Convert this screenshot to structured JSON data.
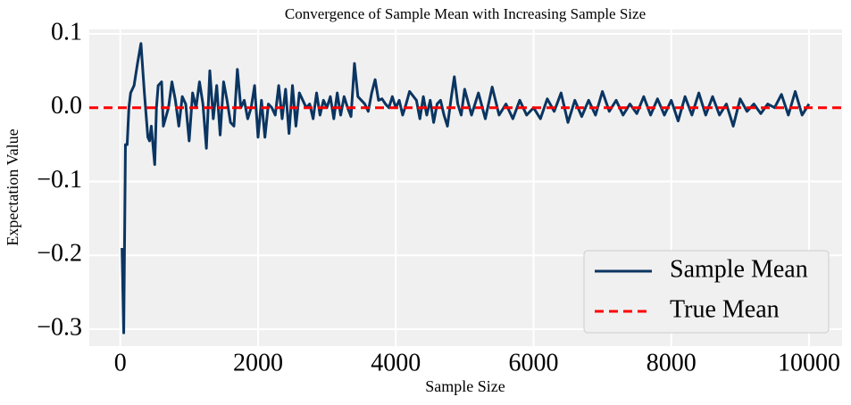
{
  "chart_data": {
    "type": "line",
    "title": "Convergence of Sample Mean with Increasing Sample Size",
    "xlabel": "Sample Size",
    "ylabel": "Expectation Value",
    "x": [
      25,
      50,
      75,
      100,
      125,
      150,
      200,
      250,
      300,
      350,
      400,
      425,
      450,
      500,
      525,
      550,
      600,
      625,
      700,
      750,
      800,
      850,
      900,
      950,
      1000,
      1050,
      1100,
      1150,
      1200,
      1250,
      1300,
      1350,
      1400,
      1450,
      1500,
      1550,
      1600,
      1650,
      1700,
      1750,
      1800,
      1850,
      1900,
      1950,
      2000,
      2050,
      2100,
      2150,
      2200,
      2250,
      2300,
      2350,
      2400,
      2450,
      2500,
      2550,
      2600,
      2650,
      2700,
      2750,
      2800,
      2850,
      2900,
      2950,
      3000,
      3050,
      3100,
      3150,
      3200,
      3250,
      3300,
      3350,
      3400,
      3450,
      3500,
      3550,
      3600,
      3650,
      3700,
      3750,
      3800,
      3850,
      3900,
      3950,
      4000,
      4050,
      4100,
      4150,
      4200,
      4300,
      4350,
      4400,
      4450,
      4500,
      4550,
      4600,
      4650,
      4700,
      4750,
      4800,
      4850,
      4900,
      4950,
      5000,
      5100,
      5200,
      5300,
      5400,
      5500,
      5600,
      5700,
      5800,
      5900,
      6000,
      6100,
      6200,
      6300,
      6400,
      6500,
      6600,
      6700,
      6800,
      6900,
      7000,
      7100,
      7200,
      7300,
      7400,
      7500,
      7600,
      7700,
      7800,
      7900,
      8000,
      8100,
      8200,
      8300,
      8400,
      8500,
      8600,
      8700,
      8800,
      8900,
      9000,
      9100,
      9200,
      9300,
      9400,
      9500,
      9600,
      9700,
      9800,
      9900,
      10000
    ],
    "series": [
      {
        "name": "Sample Mean",
        "color": "#0b3561",
        "values": [
          -0.19,
          -0.305,
          -0.05,
          -0.05,
          0.0,
          0.02,
          0.03,
          0.06,
          0.087,
          0.02,
          -0.04,
          -0.045,
          -0.025,
          -0.077,
          0.0,
          0.03,
          0.035,
          -0.025,
          0.0,
          0.035,
          0.01,
          -0.025,
          0.015,
          0.005,
          -0.045,
          0.02,
          0.0,
          0.035,
          0.005,
          -0.055,
          0.05,
          -0.015,
          0.03,
          -0.037,
          0.035,
          0.01,
          -0.02,
          -0.025,
          0.052,
          0.0,
          0.01,
          -0.015,
          0.0,
          0.03,
          -0.04,
          0.01,
          -0.04,
          0.005,
          0.0,
          -0.01,
          0.03,
          -0.015,
          0.025,
          -0.035,
          0.03,
          -0.025,
          0.02,
          0.01,
          0.0,
          0.005,
          -0.015,
          0.02,
          -0.01,
          0.01,
          0.0,
          0.015,
          -0.015,
          0.02,
          -0.01,
          0.015,
          0.0,
          -0.012,
          0.06,
          0.015,
          0.01,
          0.005,
          -0.005,
          0.02,
          0.038,
          0.01,
          0.012,
          0.005,
          0.0,
          0.015,
          0.0,
          0.01,
          -0.01,
          0.005,
          0.022,
          0.01,
          -0.015,
          0.015,
          -0.01,
          0.01,
          -0.02,
          0.005,
          0.01,
          -0.01,
          -0.025,
          0.01,
          0.042,
          0.005,
          -0.01,
          0.025,
          -0.01,
          0.02,
          -0.015,
          0.028,
          -0.01,
          0.005,
          -0.015,
          0.01,
          -0.01,
          0.0,
          -0.015,
          0.012,
          -0.005,
          0.02,
          -0.02,
          0.01,
          -0.012,
          0.01,
          -0.01,
          0.022,
          -0.005,
          0.01,
          -0.01,
          0.005,
          -0.008,
          0.015,
          -0.01,
          0.012,
          -0.01,
          0.01,
          -0.018,
          0.015,
          -0.01,
          0.02,
          -0.01,
          0.015,
          -0.01,
          0.005,
          -0.025,
          0.012,
          -0.005,
          0.005,
          -0.008,
          0.005,
          0.0,
          0.018,
          -0.01,
          0.022,
          -0.01,
          0.005
        ]
      },
      {
        "name": "True Mean",
        "color": "#ff0000",
        "dashed": true,
        "hline": 0
      }
    ],
    "xlim": [
      -450,
      10480
    ],
    "ylim": [
      -0.323,
      0.106
    ],
    "xticks": [
      0,
      2000,
      4000,
      6000,
      8000,
      10000
    ],
    "yticks": [
      {
        "value": -0.3,
        "label": "−0.3"
      },
      {
        "value": -0.2,
        "label": "−0.2"
      },
      {
        "value": -0.1,
        "label": "−0.1"
      },
      {
        "value": 0,
        "label": "0.0"
      },
      0.1
    ],
    "grid": true,
    "legend": "lower right"
  }
}
